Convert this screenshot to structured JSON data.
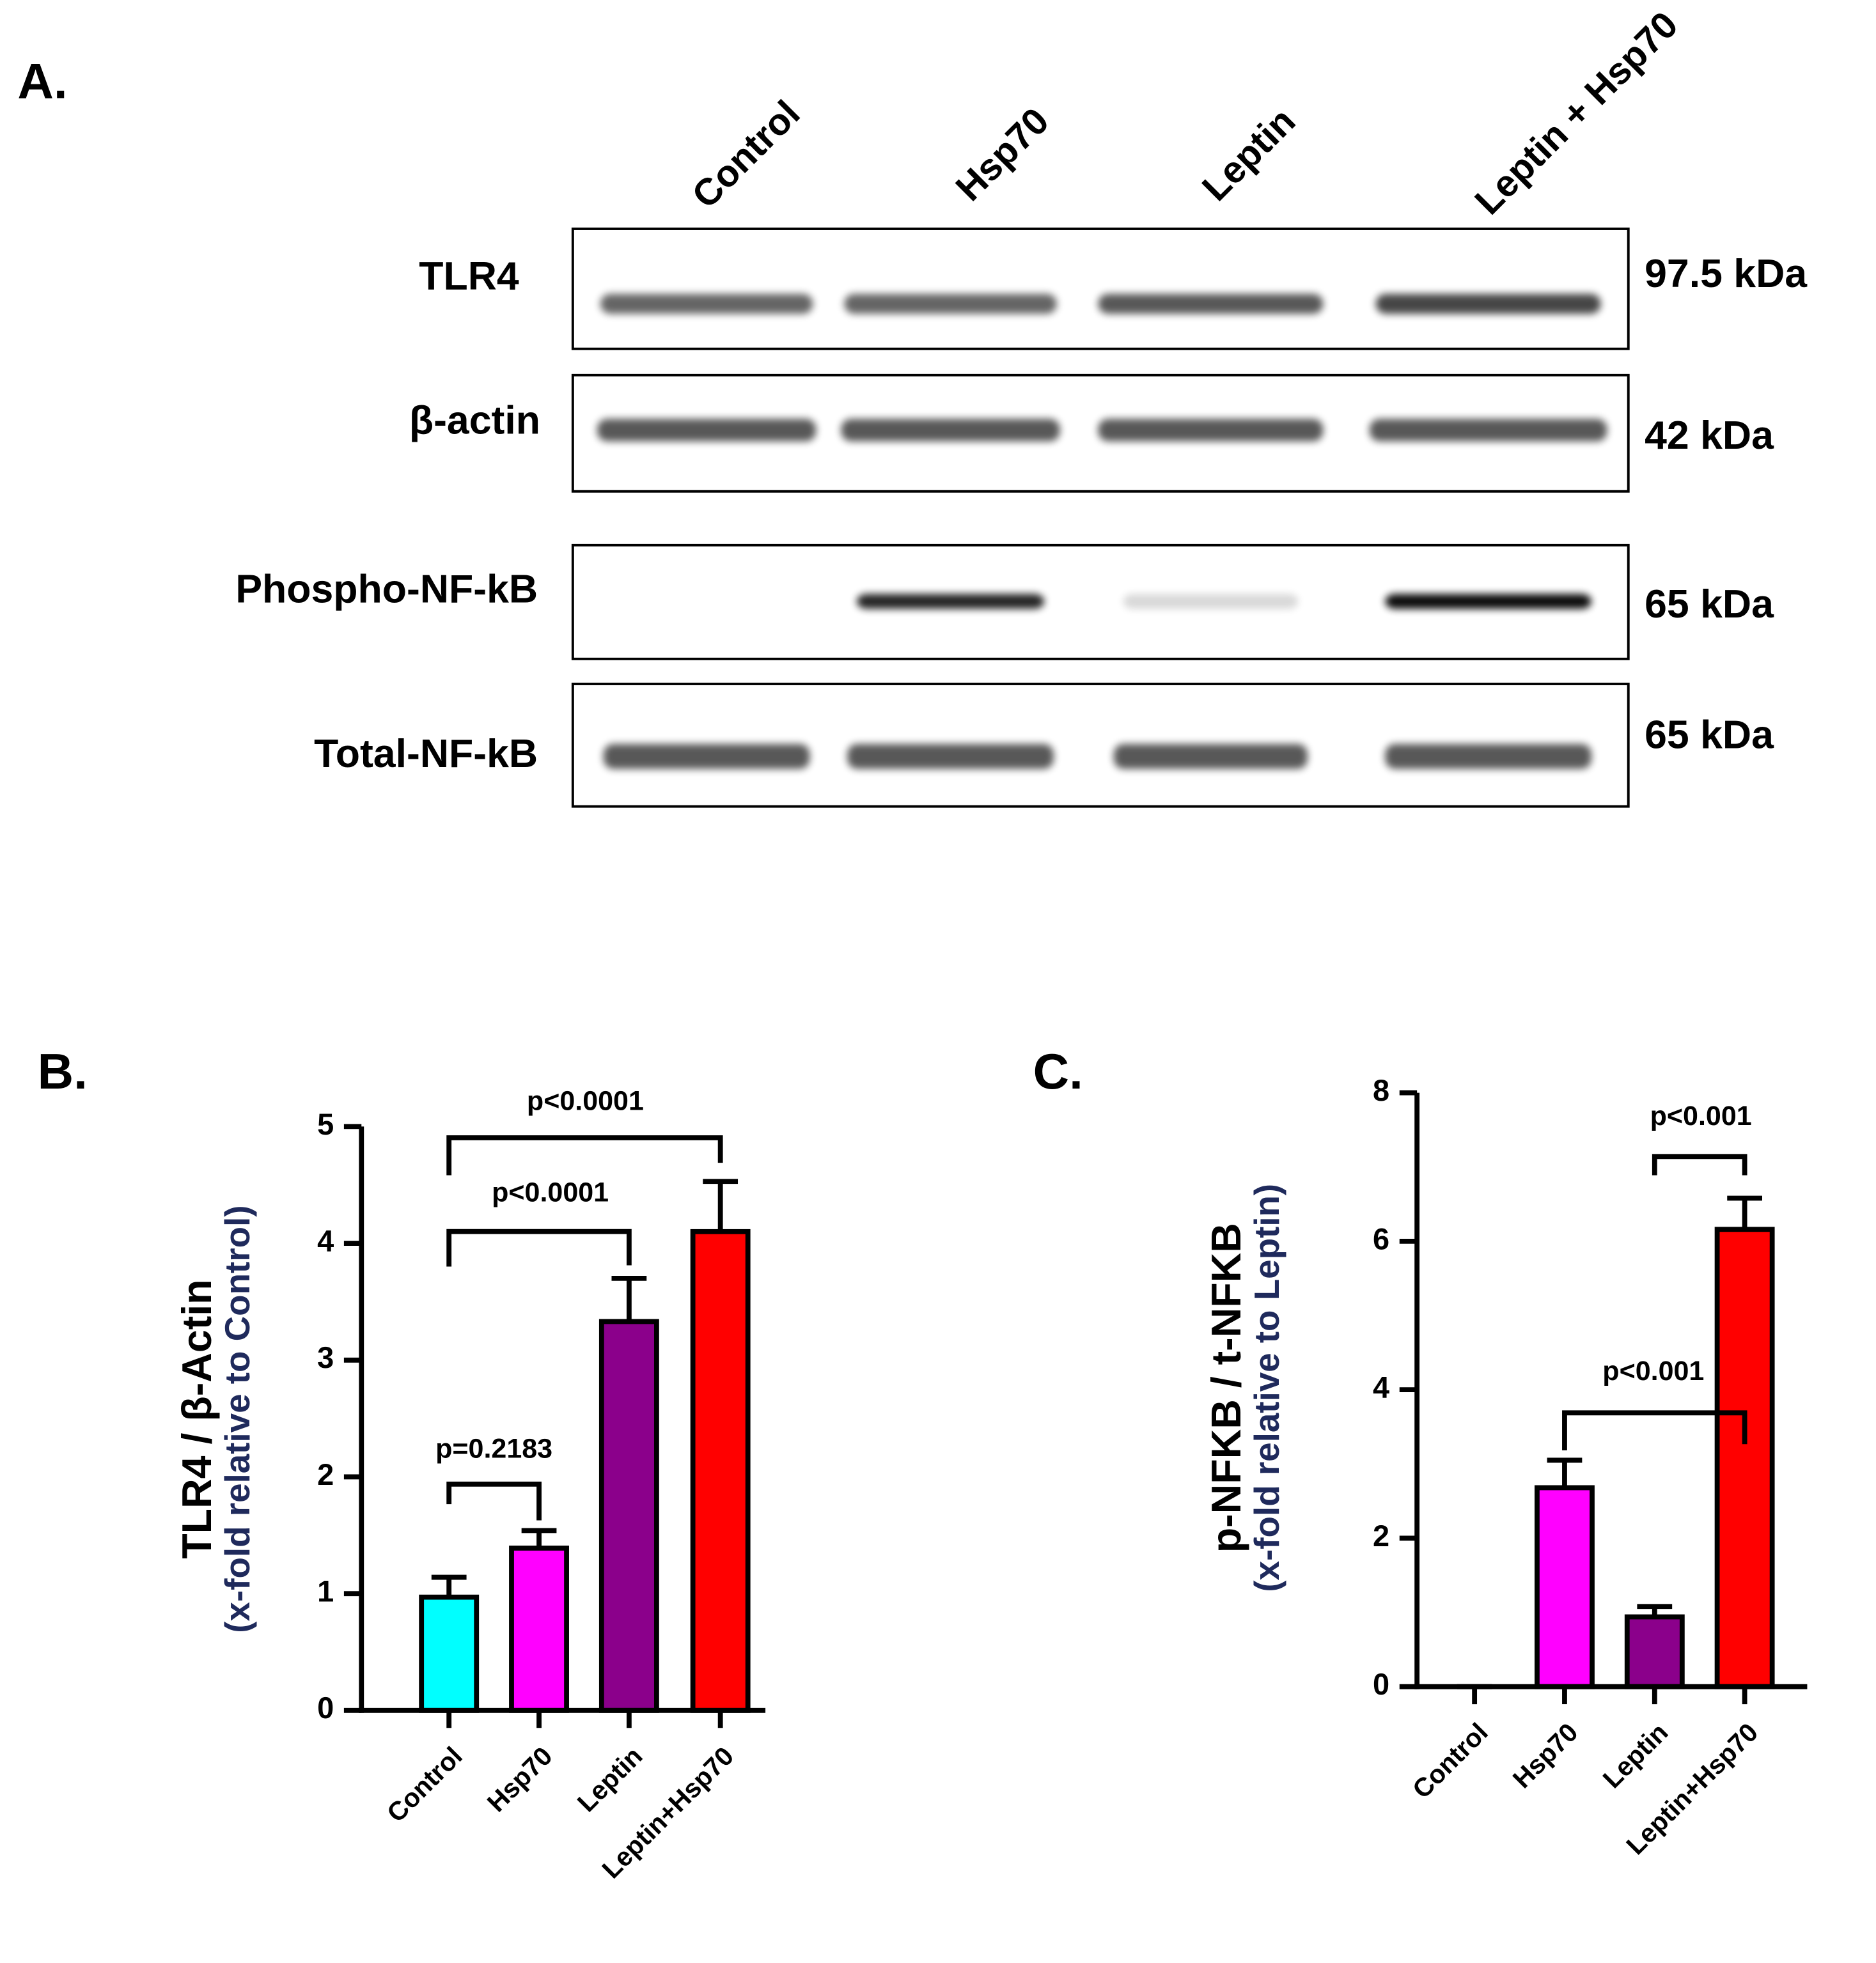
{
  "blot": {
    "panel_label": "A.",
    "lanes": [
      "Control",
      "Hsp70",
      "Leptin",
      "Leptin + Hsp70"
    ],
    "rows": [
      {
        "label": "TLR4",
        "size": "97.5 kDa"
      },
      {
        "label": "β-actin",
        "size": "42 kDa"
      },
      {
        "label": "Phospho-NF-kB",
        "size": "65 kDa"
      },
      {
        "label": "Total-NF-kB",
        "size": "65 kDa"
      }
    ]
  },
  "chart_data": [
    {
      "type": "bar",
      "panel_label": "B.",
      "ylabel": [
        "TLR4 / β-Actin",
        "(x-fold relative to Control)"
      ],
      "categories": [
        "Control",
        "Hsp70",
        "Leptin",
        "Leptin+Hsp70"
      ],
      "values": [
        0.97,
        1.39,
        3.33,
        4.1
      ],
      "errors": [
        0.17,
        0.15,
        0.37,
        0.43
      ],
      "colors": [
        "#00ffff",
        "#ff00ff",
        "#8b008b",
        "#ff0000"
      ],
      "ylim": [
        0,
        5
      ],
      "yticks": [
        0,
        1,
        2,
        3,
        4,
        5
      ],
      "annotations": [
        "p=0.2183",
        "p<0.0001",
        "p<0.0001"
      ]
    },
    {
      "type": "bar",
      "panel_label": "C.",
      "ylabel": [
        "p-NFKB / t-NFKB",
        "(x-fold relative to Leptin)"
      ],
      "categories": [
        "Control",
        "Hsp70",
        "Leptin",
        "Leptin+Hsp70"
      ],
      "values": [
        0,
        2.68,
        0.94,
        6.16
      ],
      "errors": [
        0,
        0.37,
        0.14,
        0.42
      ],
      "colors": [
        "#00ffff",
        "#ff00ff",
        "#8b008b",
        "#ff0000"
      ],
      "ylim": [
        0,
        8
      ],
      "yticks": [
        0,
        2,
        4,
        6,
        8
      ],
      "annotations": [
        "p<0.001",
        "p<0.001"
      ]
    }
  ]
}
